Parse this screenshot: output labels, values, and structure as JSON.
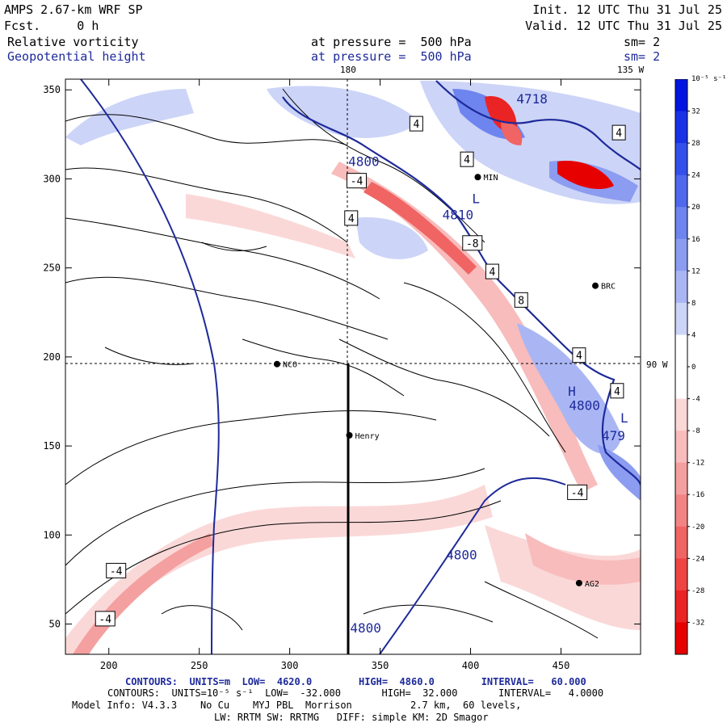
{
  "header": {
    "model": "AMPS 2.67-km WRF SP",
    "fcst": "Fcst.     0 h",
    "init": "Init. 12 UTC Thu 31 Jul 25",
    "valid": "Valid. 12 UTC Thu 31 Jul 25",
    "field1_name": "Relative vorticity",
    "field1_level": "at pressure =  500 hPa",
    "field1_sm": "sm= 2",
    "field2_name": "Geopotential height",
    "field2_level": "at pressure =  500 hPa",
    "field2_sm": "sm= 2"
  },
  "map": {
    "lon_top_180": "180",
    "lon_top_135w": "135 W",
    "lon_right_90w": "90 W",
    "x_ticks": [
      "200",
      "250",
      "300",
      "350",
      "400",
      "450"
    ],
    "y_ticks": [
      "350",
      "300",
      "250",
      "200",
      "150",
      "100",
      "50"
    ],
    "x_tick_values": [
      200,
      250,
      300,
      350,
      400,
      450
    ],
    "y_tick_values": [
      350,
      300,
      250,
      200,
      150,
      100,
      50
    ],
    "x_range": [
      176,
      494
    ],
    "y_range": [
      33,
      356
    ],
    "stations": [
      {
        "name": "NCO",
        "x": 293,
        "y": 196
      },
      {
        "name": "Henry",
        "x": 333,
        "y": 156
      },
      {
        "name": "BRC",
        "x": 469,
        "y": 240
      },
      {
        "name": "AG2",
        "x": 460,
        "y": 73
      },
      {
        "name": "MIN",
        "x": 404,
        "y": 301
      }
    ],
    "contour_labels": [
      {
        "text": "4",
        "x": 370,
        "y": 331
      },
      {
        "text": "4",
        "x": 398,
        "y": 311
      },
      {
        "text": "4",
        "x": 334,
        "y": 278
      },
      {
        "text": "-4",
        "x": 337,
        "y": 299
      },
      {
        "text": "-8",
        "x": 401,
        "y": 264
      },
      {
        "text": "4",
        "x": 412,
        "y": 248
      },
      {
        "text": "8",
        "x": 428,
        "y": 232
      },
      {
        "text": "4",
        "x": 460,
        "y": 201
      },
      {
        "text": "4",
        "x": 482,
        "y": 326
      },
      {
        "text": "4",
        "x": 481,
        "y": 181
      },
      {
        "text": "-4",
        "x": 459,
        "y": 124
      },
      {
        "text": "-4",
        "x": 204,
        "y": 80
      },
      {
        "text": "-4",
        "x": 198,
        "y": 53
      }
    ],
    "height_labels": [
      {
        "text": "4800",
        "x": 341,
        "y": 310
      },
      {
        "text": "4810",
        "x": 393,
        "y": 280
      },
      {
        "text": "4800",
        "x": 395,
        "y": 89
      },
      {
        "text": "4800",
        "x": 342,
        "y": 48
      },
      {
        "text": "4718",
        "x": 434,
        "y": 345
      },
      {
        "text": "4800",
        "x": 463,
        "y": 173
      },
      {
        "text": "479",
        "x": 479,
        "y": 156
      },
      {
        "text": "L",
        "x": 485,
        "y": 166
      },
      {
        "text": "L",
        "x": 403,
        "y": 289
      },
      {
        "text": "H",
        "x": 456,
        "y": 181
      }
    ]
  },
  "colorbar": {
    "unit": "10⁻⁵ s⁻¹",
    "labels": [
      "32",
      "28",
      "24",
      "20",
      "16",
      "12",
      "8",
      "4",
      "0",
      "-4",
      "-8",
      "-12",
      "-16",
      "-20",
      "-24",
      "-28",
      "-32"
    ],
    "colors": [
      "#0016e0",
      "#1a32e6",
      "#3450ea",
      "#5068ec",
      "#6e84ee",
      "#8c9cf0",
      "#aab6f4",
      "#ccd4f8",
      "#ffffff",
      "#ffffff",
      "#fbd8d8",
      "#f8bcbc",
      "#f4a0a0",
      "#f28484",
      "#f06464",
      "#ee4444",
      "#ea2424",
      "#e60000"
    ]
  },
  "footer": {
    "line1_a": "CONTOURS:  UNITS=m  LOW=  4620.0        HIGH=  4860.0        INTERVAL=   60.000",
    "line2": "CONTOURS:  UNITS=10⁻⁵ s⁻¹  LOW=  -32.000       HIGH=  32.000       INTERVAL=   4.0000",
    "line3": "Model Info: V4.3.3    No Cu    MYJ PBL  Morrison          2.7 km,  60 levels,",
    "line4": "LW: RRTM SW: RRTMG   DIFF: simple KM: 2D Smagor"
  }
}
